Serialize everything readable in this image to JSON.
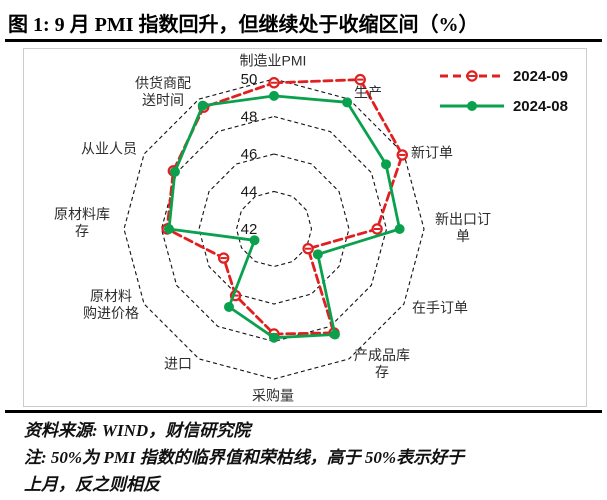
{
  "title": "图 1: 9 月 PMI 指数回升，但继续处于收缩区间（%）",
  "source_line": "资料来源: WIND，财信研究院",
  "note_lines": [
    "注: 50%为 PMI 指数的临界值和荣枯线，高于 50%表示好于",
    "上月，反之则相反"
  ],
  "colors": {
    "series_sep": "#E02020",
    "series_aug": "#0AA14E",
    "grid": "#111111",
    "label_text": "#2d2d2d"
  },
  "chart_data": {
    "type": "radar",
    "title": "9月PMI指数回升，但继续处于收缩区间（%）",
    "categories": [
      "制造业PMI",
      "生产",
      "新订单",
      "新出口订单",
      "在手订单",
      "产成品库存",
      "采购量",
      "进口",
      "原材料购进价格",
      "原材料库存",
      "从业人员",
      "供货商配送时间"
    ],
    "series": [
      {
        "name": "2024-09",
        "color": "#E02020",
        "line_style": "dashed",
        "marker": "open-circle-dash",
        "values": [
          49.8,
          51.2,
          49.9,
          47.5,
          44.1,
          48.4,
          47.6,
          46.1,
          45.1,
          47.7,
          48.2,
          49.5
        ]
      },
      {
        "name": "2024-08",
        "color": "#0AA14E",
        "line_style": "solid",
        "marker": "filled-circle",
        "values": [
          49.1,
          49.8,
          48.9,
          48.7,
          44.7,
          48.5,
          47.8,
          46.8,
          43.2,
          47.6,
          48.1,
          49.6
        ]
      }
    ],
    "radial_axis": {
      "min": 42,
      "max": 50,
      "ticks": [
        42,
        44,
        46,
        48,
        50
      ],
      "gridline_style": "dashed"
    },
    "grid": true,
    "legend_position": "top-right"
  }
}
